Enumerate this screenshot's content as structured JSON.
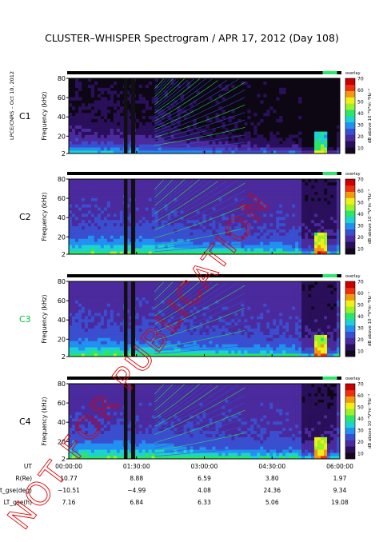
{
  "title": "CLUSTER–WHISPER Spectrogram / APR 17, 2012 (Day 108)",
  "side_credit": "LPCE/CNRS – Oct 10, 2012",
  "watermark": "NOT FOR PUBLICATION",
  "chart_data": [
    {
      "type": "heatmap",
      "panel": "C1",
      "panel_color": "#000000",
      "ylabel": "Frequency (kHz)",
      "ylim": [
        2,
        80
      ],
      "yticks": [
        2,
        20,
        40,
        60,
        80
      ],
      "colorbar": {
        "label": "dB above 10⁻⁸V²m⁻²Hz⁻¹",
        "ticks": [
          10,
          20,
          30,
          40,
          50,
          60,
          70
        ],
        "range": [
          5,
          70
        ]
      },
      "mode_label": "overlay"
    },
    {
      "type": "heatmap",
      "panel": "C2",
      "panel_color": "#000000",
      "ylabel": "Frequency (kHz)",
      "ylim": [
        2,
        80
      ],
      "yticks": [
        2,
        20,
        40,
        60,
        80
      ],
      "colorbar": {
        "label": "dB above 10⁻⁸V²m⁻²Hz⁻¹",
        "ticks": [
          10,
          20,
          30,
          40,
          50,
          60,
          70
        ],
        "range": [
          5,
          70
        ]
      },
      "mode_label": "overlay"
    },
    {
      "type": "heatmap",
      "panel": "C3",
      "panel_color": "#00c040",
      "ylabel": "Frequency (kHz)",
      "ylim": [
        2,
        80
      ],
      "yticks": [
        2,
        20,
        40,
        60,
        80
      ],
      "colorbar": {
        "label": "dB above 10⁻⁸V²m⁻²Hz⁻¹",
        "ticks": [
          10,
          20,
          30,
          40,
          50,
          60,
          70
        ],
        "range": [
          5,
          70
        ]
      },
      "mode_label": "overlay"
    },
    {
      "type": "heatmap",
      "panel": "C4",
      "panel_color": "#000000",
      "ylabel": "Frequency (kHz)",
      "ylim": [
        2,
        80
      ],
      "yticks": [
        2,
        20,
        40,
        60,
        80
      ],
      "colorbar": {
        "label": "dB above 10⁻⁸V²m⁻²Hz⁻¹",
        "ticks": [
          10,
          20,
          30,
          40,
          50,
          60,
          70
        ],
        "range": [
          5,
          70
        ]
      },
      "mode_label": "overlay"
    }
  ],
  "time_axis": {
    "ticks": [
      "00:00:00",
      "01:30:00",
      "03:00:00",
      "04:30:00",
      "06:00:00"
    ],
    "hours": [
      0,
      1.5,
      3,
      4.5,
      6
    ]
  },
  "ephemeris": {
    "rows": [
      {
        "label": "UT",
        "values": [
          "00:00:00",
          "01:30:00",
          "03:00:00",
          "04:30:00",
          "06:00:00"
        ]
      },
      {
        "label": "R(Re)",
        "values": [
          "10.77",
          "8.88",
          "6.59",
          "3.80",
          "1.97"
        ]
      },
      {
        "label": "Lat_gse(deg)",
        "values": [
          "−10.51",
          "−4.99",
          "4.08",
          "24.36",
          "9.34"
        ]
      },
      {
        "label": "LT_gse(h)",
        "values": [
          "7.16",
          "6.84",
          "6.33",
          "5.06",
          "19.08"
        ]
      }
    ]
  },
  "colors": {
    "background": "#ffffff",
    "data_gap": "#101010",
    "colormap": [
      "#14081e",
      "#2a0f5a",
      "#4a2a9c",
      "#3a4ed0",
      "#2290f0",
      "#1ed2d2",
      "#2ae66a",
      "#9ef028",
      "#f0f018",
      "#f09a10",
      "#ec3010",
      "#c80000"
    ]
  }
}
